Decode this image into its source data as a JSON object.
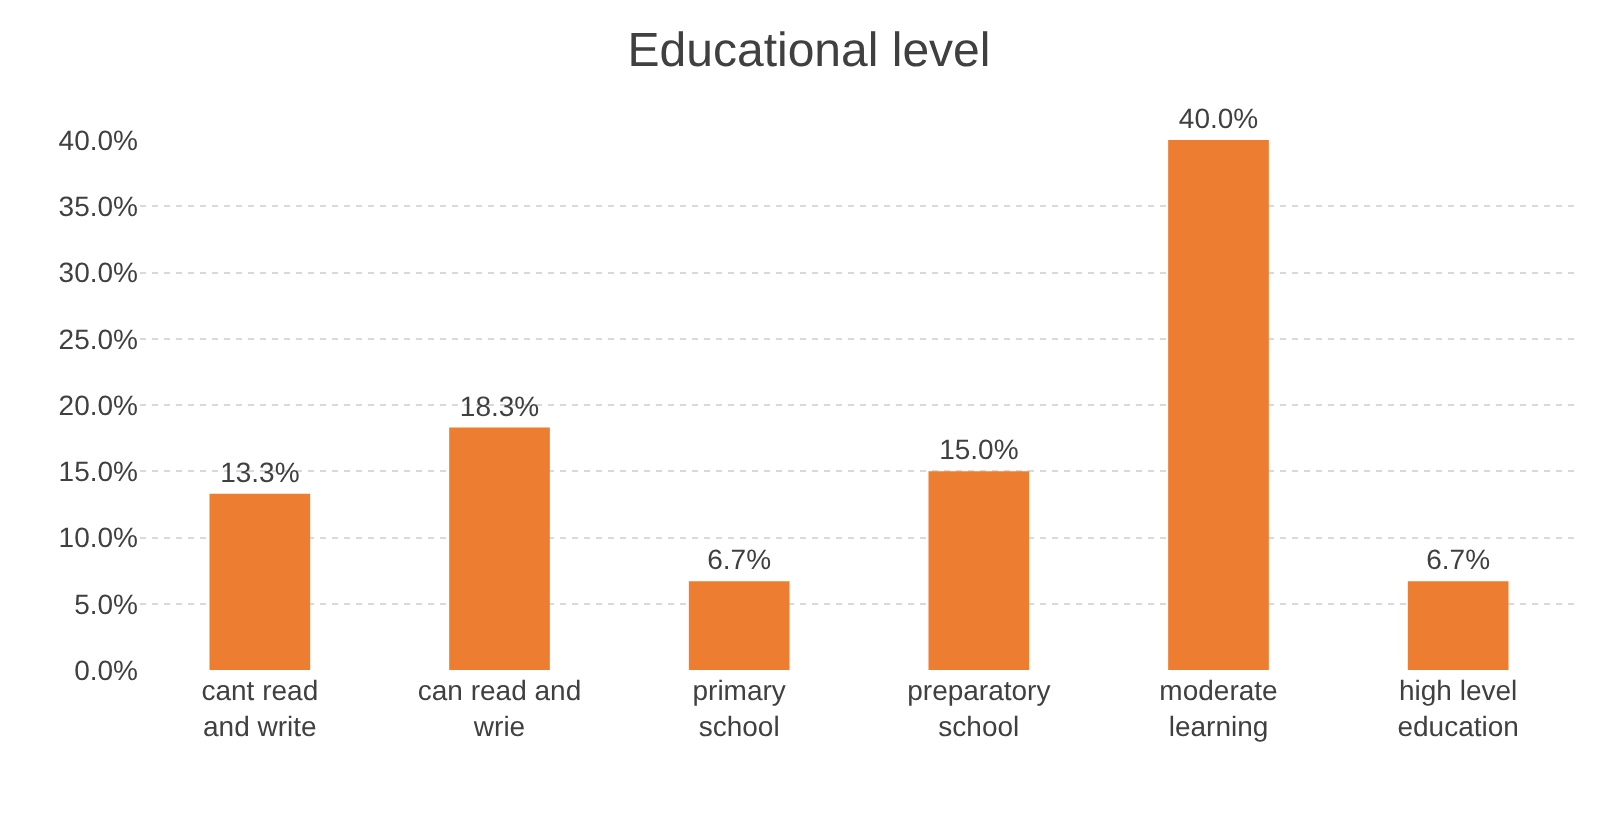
{
  "chart_data": {
    "type": "bar",
    "title": "Educational level",
    "categories": [
      "cant read\nand write",
      "can read and\nwrie",
      "primary\nschool",
      "preparatory\nschool",
      "moderate\nlearning",
      "high level\neducation"
    ],
    "values": [
      13.3,
      18.3,
      6.7,
      15.0,
      40.0,
      6.7
    ],
    "value_labels": [
      "13.3%",
      "18.3%",
      "6.7%",
      "15.0%",
      "40.0%",
      "6.7%"
    ],
    "color": "#ed7d31",
    "ylim": [
      0,
      40
    ],
    "yticks": [
      {
        "value": 0,
        "label": "0.0%"
      },
      {
        "value": 5,
        "label": "5.0%"
      },
      {
        "value": 10,
        "label": "10.0%"
      },
      {
        "value": 15,
        "label": "15.0%"
      },
      {
        "value": 20,
        "label": "20.0%"
      },
      {
        "value": 25,
        "label": "25.0%"
      },
      {
        "value": 30,
        "label": "30.0%"
      },
      {
        "value": 35,
        "label": "35.0%"
      },
      {
        "value": 40,
        "label": "40.0%"
      }
    ],
    "grid": "y"
  }
}
